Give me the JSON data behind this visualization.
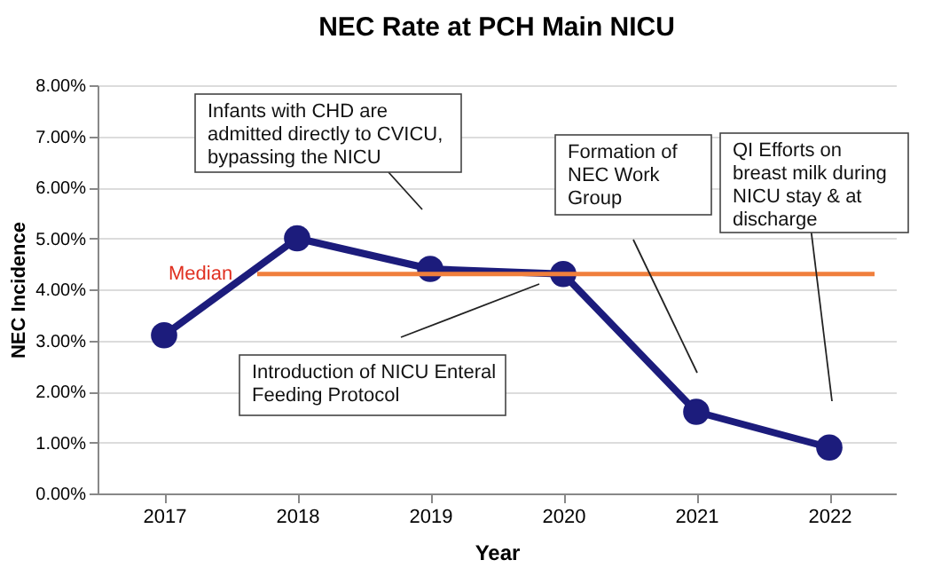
{
  "chart_data": {
    "type": "line",
    "title": "NEC Rate at PCH Main NICU",
    "xlabel": "Year",
    "ylabel": "NEC Incidence",
    "categories": [
      "2017",
      "2018",
      "2019",
      "2020",
      "2021",
      "2022"
    ],
    "series": [
      {
        "color": "#1c1c7c",
        "values": [
          3.1,
          5.0,
          4.4,
          4.3,
          1.6,
          0.9
        ]
      }
    ],
    "ylim": [
      0,
      8
    ],
    "yticks": [
      {
        "value": 0,
        "label": "0.00%"
      },
      {
        "value": 1,
        "label": "1.00%"
      },
      {
        "value": 2,
        "label": "2.00%"
      },
      {
        "value": 3,
        "label": "3.00%"
      },
      {
        "value": 4,
        "label": "4.00%"
      },
      {
        "value": 5,
        "label": "5.00%"
      },
      {
        "value": 6,
        "label": "6.00%"
      },
      {
        "value": 7,
        "label": "7.00%"
      },
      {
        "value": 8,
        "label": "8.00%"
      }
    ],
    "grid": "y",
    "marker": "circle",
    "line_style": "solid",
    "ref_lines": [
      {
        "axis": "y",
        "value": 4.3,
        "label": "Median",
        "color": "#f07f3c"
      }
    ],
    "annotations": [
      "Infants with CHD are admitted directly to CVICU, bypassing the NICU",
      "Introduction of NICU Enteral Feeding Protocol",
      "Formation of NEC Work Group",
      "QI Efforts on breast milk during NICU stay & at discharge"
    ]
  }
}
